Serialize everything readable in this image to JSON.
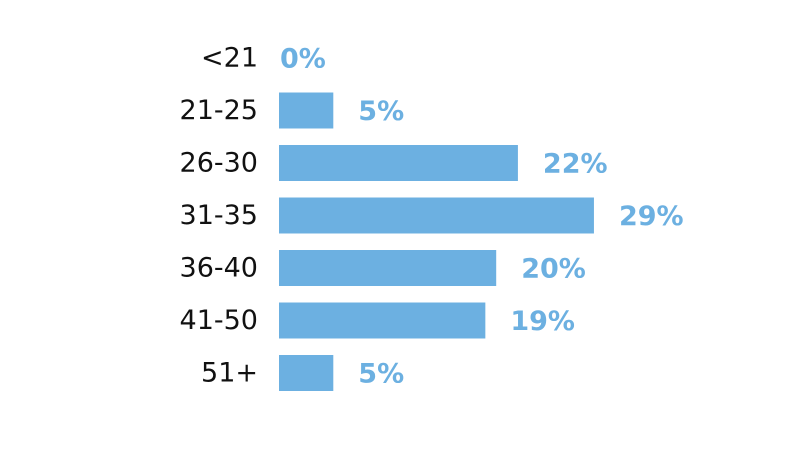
{
  "chart_data": {
    "type": "bar",
    "orientation": "horizontal",
    "categories": [
      "<21",
      "21-25",
      "26-30",
      "31-35",
      "36-40",
      "41-50",
      "51+"
    ],
    "values": [
      0,
      5,
      22,
      29,
      20,
      19,
      5
    ],
    "value_labels": [
      "0%",
      "5%",
      "22%",
      "29%",
      "20%",
      "19%",
      "5%"
    ],
    "color": "#6cb0e1"
  }
}
